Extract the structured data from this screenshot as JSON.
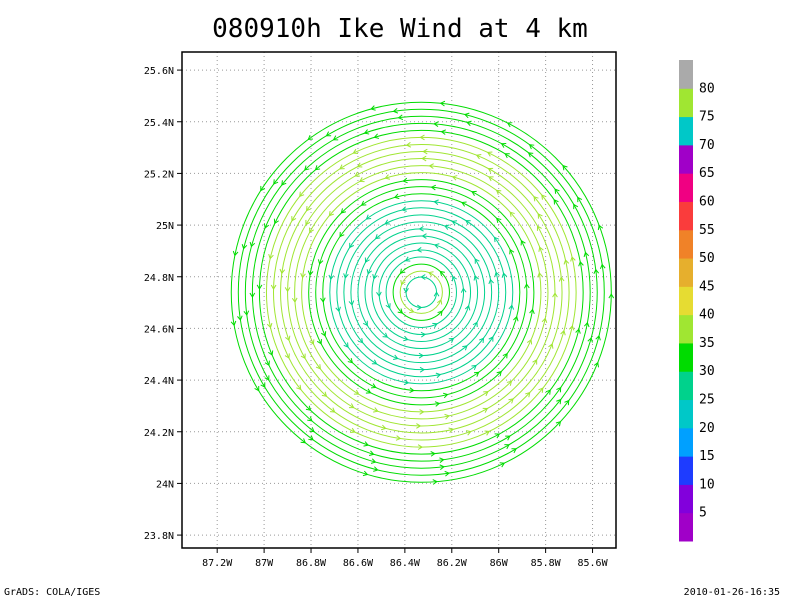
{
  "chart_data": {
    "type": "vector-streamline",
    "title": "080910h Ike Wind at 4 km",
    "xlim": [
      -87.35,
      -85.5
    ],
    "ylim": [
      23.75,
      25.67
    ],
    "x_ticks": [
      {
        "value": -87.2,
        "label": "87.2W"
      },
      {
        "value": -87.0,
        "label": "87W"
      },
      {
        "value": -86.8,
        "label": "86.8W"
      },
      {
        "value": -86.6,
        "label": "86.6W"
      },
      {
        "value": -86.4,
        "label": "86.4W"
      },
      {
        "value": -86.2,
        "label": "86.2W"
      },
      {
        "value": -86.0,
        "label": "86W"
      },
      {
        "value": -85.8,
        "label": "85.8W"
      },
      {
        "value": -85.6,
        "label": "85.6W"
      }
    ],
    "y_ticks": [
      {
        "value": 23.8,
        "label": "23.8N"
      },
      {
        "value": 24.0,
        "label": "24N"
      },
      {
        "value": 24.2,
        "label": "24.2N"
      },
      {
        "value": 24.4,
        "label": "24.4N"
      },
      {
        "value": 24.6,
        "label": "24.6N"
      },
      {
        "value": 24.8,
        "label": "24.8N"
      },
      {
        "value": 25.0,
        "label": "25N"
      },
      {
        "value": 25.2,
        "label": "25.2N"
      },
      {
        "value": 25.4,
        "label": "25.4N"
      },
      {
        "value": 25.6,
        "label": "25.6N"
      }
    ],
    "grid": true,
    "circulation_center": {
      "lon": -86.33,
      "lat": 24.74
    },
    "colorbar": {
      "labels": [
        "5",
        "10",
        "15",
        "20",
        "25",
        "30",
        "35",
        "40",
        "45",
        "50",
        "55",
        "60",
        "65",
        "70",
        "75",
        "80"
      ],
      "colors": [
        "#a000c8",
        "#8200dc",
        "#1e3cff",
        "#00a0ff",
        "#00c8c8",
        "#00d28c",
        "#00dc00",
        "#a0e632",
        "#e6dc32",
        "#e6af2d",
        "#f08228",
        "#fa3c3c",
        "#f00082",
        "#a000c8",
        "#00c8c8",
        "#a0e632",
        "#aaaaaa"
      ]
    },
    "rings": [
      {
        "r": 0.065,
        "speed": 27
      },
      {
        "r": 0.09,
        "speed": 35
      },
      {
        "r": 0.12,
        "speed": 33
      },
      {
        "r": 0.15,
        "speed": 28
      },
      {
        "r": 0.18,
        "speed": 26
      },
      {
        "r": 0.21,
        "speed": 25
      },
      {
        "r": 0.24,
        "speed": 25
      },
      {
        "r": 0.27,
        "speed": 25
      },
      {
        "r": 0.3,
        "speed": 26
      },
      {
        "r": 0.33,
        "speed": 26
      },
      {
        "r": 0.36,
        "speed": 27
      },
      {
        "r": 0.39,
        "speed": 29
      },
      {
        "r": 0.42,
        "speed": 31
      },
      {
        "r": 0.45,
        "speed": 33
      },
      {
        "r": 0.48,
        "speed": 34
      },
      {
        "r": 0.51,
        "speed": 35
      },
      {
        "r": 0.54,
        "speed": 35
      },
      {
        "r": 0.57,
        "speed": 36
      },
      {
        "r": 0.6,
        "speed": 36
      },
      {
        "r": 0.63,
        "speed": 35
      },
      {
        "r": 0.66,
        "speed": 35
      },
      {
        "r": 0.69,
        "speed": 34
      },
      {
        "r": 0.72,
        "speed": 34
      },
      {
        "r": 0.75,
        "speed": 33
      },
      {
        "r": 0.78,
        "speed": 32
      },
      {
        "r": 0.81,
        "speed": 31
      }
    ]
  },
  "footer": {
    "left": "GrADS: COLA/IGES",
    "right": "2010-01-26-16:35"
  }
}
